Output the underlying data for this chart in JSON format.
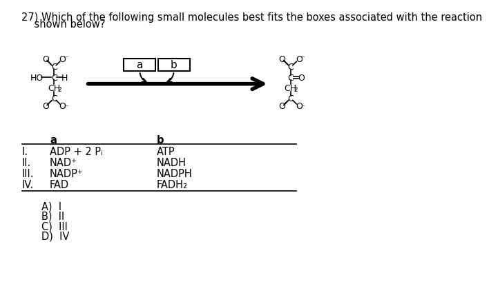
{
  "title_line1": "27) Which of the following small molecules best fits the boxes associated with the reaction",
  "title_line2": "    shown below?",
  "title_fontsize": 10.5,
  "background_color": "#ffffff",
  "text_color": "#000000",
  "table_headers": [
    "a",
    "b"
  ],
  "table_rows": [
    [
      "I.",
      "ADP + 2 Pᵢ",
      "ATP"
    ],
    [
      "II.",
      "NAD⁺",
      "NADH"
    ],
    [
      "III.",
      "NADP⁺",
      "NADPH"
    ],
    [
      "IV.",
      "FAD",
      "FADH₂"
    ]
  ],
  "choices": [
    "A)  I",
    "B)  II",
    "C)  III",
    "D)  IV"
  ],
  "box_a_label": "a",
  "box_b_label": "b",
  "mol_font_size": 9.0,
  "table_font_size": 10.5
}
